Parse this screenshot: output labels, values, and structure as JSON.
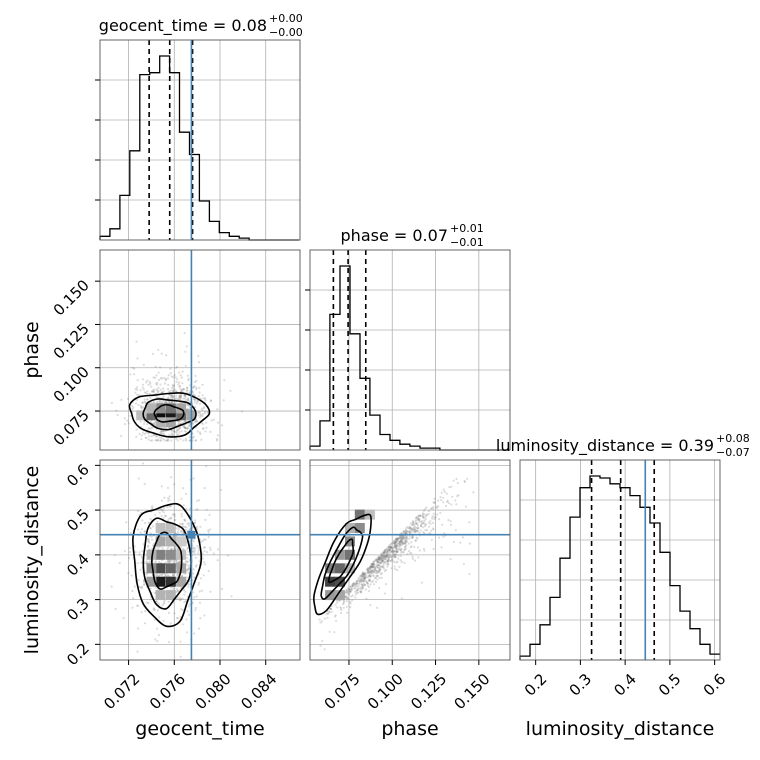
{
  "chart_data": {
    "type": "corner",
    "colors": {
      "truth": "#4682b4",
      "hist": "#000000",
      "grid": "#b0b0b0",
      "points": "#808080"
    },
    "grid": true,
    "params": [
      {
        "name": "geocent_time",
        "axis_label": "geocent_time",
        "title_main": "geocent_time = 0.08",
        "title_plus": "+0.00",
        "title_minus": "−0.00",
        "range": [
          0.0695,
          0.087
        ],
        "ticks": [
          0.072,
          0.076,
          0.08,
          0.084
        ],
        "tick_labels": [
          "0.072",
          "0.076",
          "0.080",
          "0.084"
        ],
        "truth": 0.0775,
        "quantiles": [
          0.0738,
          0.0756,
          0.0776
        ],
        "hist_edges": [
          0.0695,
          0.07037,
          0.07124,
          0.07211,
          0.07298,
          0.07385,
          0.07472,
          0.07559,
          0.07646,
          0.07733,
          0.0782,
          0.07907,
          0.07994,
          0.08081,
          0.08168,
          0.08255,
          0.08342,
          0.08429,
          0.08516,
          0.08603,
          0.0869
        ],
        "hist_counts": [
          2,
          6,
          24,
          48,
          89,
          90,
          99,
          90,
          58,
          46,
          21,
          10,
          4,
          2,
          1,
          0,
          0,
          0,
          0,
          0
        ]
      },
      {
        "name": "phase",
        "axis_label": "phase",
        "title_main": "phase = 0.07",
        "title_plus": "+0.01",
        "title_minus": "−0.01",
        "range": [
          0.0525,
          0.168
        ],
        "ticks": [
          0.075,
          0.1,
          0.125,
          0.15
        ],
        "tick_labels": [
          "0.075",
          "0.100",
          "0.125",
          "0.150"
        ],
        "quantiles": [
          0.066,
          0.0745,
          0.0847
        ],
        "hist_edges": [
          0.0525,
          0.0583,
          0.064,
          0.0698,
          0.0756,
          0.0814,
          0.0871,
          0.0929,
          0.0987,
          0.1044,
          0.1102,
          0.116,
          0.1218,
          0.1275,
          0.1333,
          0.1391,
          0.1449,
          0.1506,
          0.1564,
          0.1622,
          0.168
        ],
        "hist_counts": [
          2,
          15,
          70,
          95,
          60,
          37,
          18,
          8,
          5,
          3,
          2,
          1,
          1,
          0,
          0,
          0,
          0,
          0,
          0,
          0
        ]
      },
      {
        "name": "luminosity_distance",
        "axis_label": "luminosity_distance",
        "title_main": "luminosity_distance = 0.39",
        "title_plus": "+0.08",
        "title_minus": "−0.07",
        "range": [
          0.165,
          0.612
        ],
        "ticks": [
          0.2,
          0.3,
          0.4,
          0.5,
          0.6
        ],
        "tick_labels": [
          "0.2",
          "0.3",
          "0.4",
          "0.5",
          "0.6"
        ],
        "truth": 0.445,
        "quantiles": [
          0.325,
          0.39,
          0.465
        ],
        "hist_edges": [
          0.165,
          0.1874,
          0.2097,
          0.2321,
          0.2544,
          0.2768,
          0.2991,
          0.3215,
          0.3438,
          0.3662,
          0.3885,
          0.4109,
          0.4332,
          0.4556,
          0.4779,
          0.5003,
          0.5226,
          0.545,
          0.5673,
          0.5897,
          0.612
        ],
        "hist_counts": [
          2,
          8,
          18,
          32,
          52,
          73,
          88,
          94,
          93,
          90,
          88,
          84,
          78,
          70,
          55,
          38,
          25,
          16,
          8,
          3
        ]
      }
    ],
    "ylims_2d": {
      "phase": [
        0.0525,
        0.168
      ],
      "luminosity_distance": [
        0.165,
        0.612
      ]
    },
    "y_ticks_2d": {
      "phase": {
        "ticks": [
          0.075,
          0.1,
          0.125,
          0.15
        ],
        "labels": [
          "0.075",
          "0.100",
          "0.125",
          "0.150"
        ]
      },
      "luminosity_distance": {
        "ticks": [
          0.2,
          0.3,
          0.4,
          0.5,
          0.6
        ],
        "labels": [
          "0.2",
          "0.3",
          "0.4",
          "0.5",
          "0.6"
        ]
      }
    }
  }
}
